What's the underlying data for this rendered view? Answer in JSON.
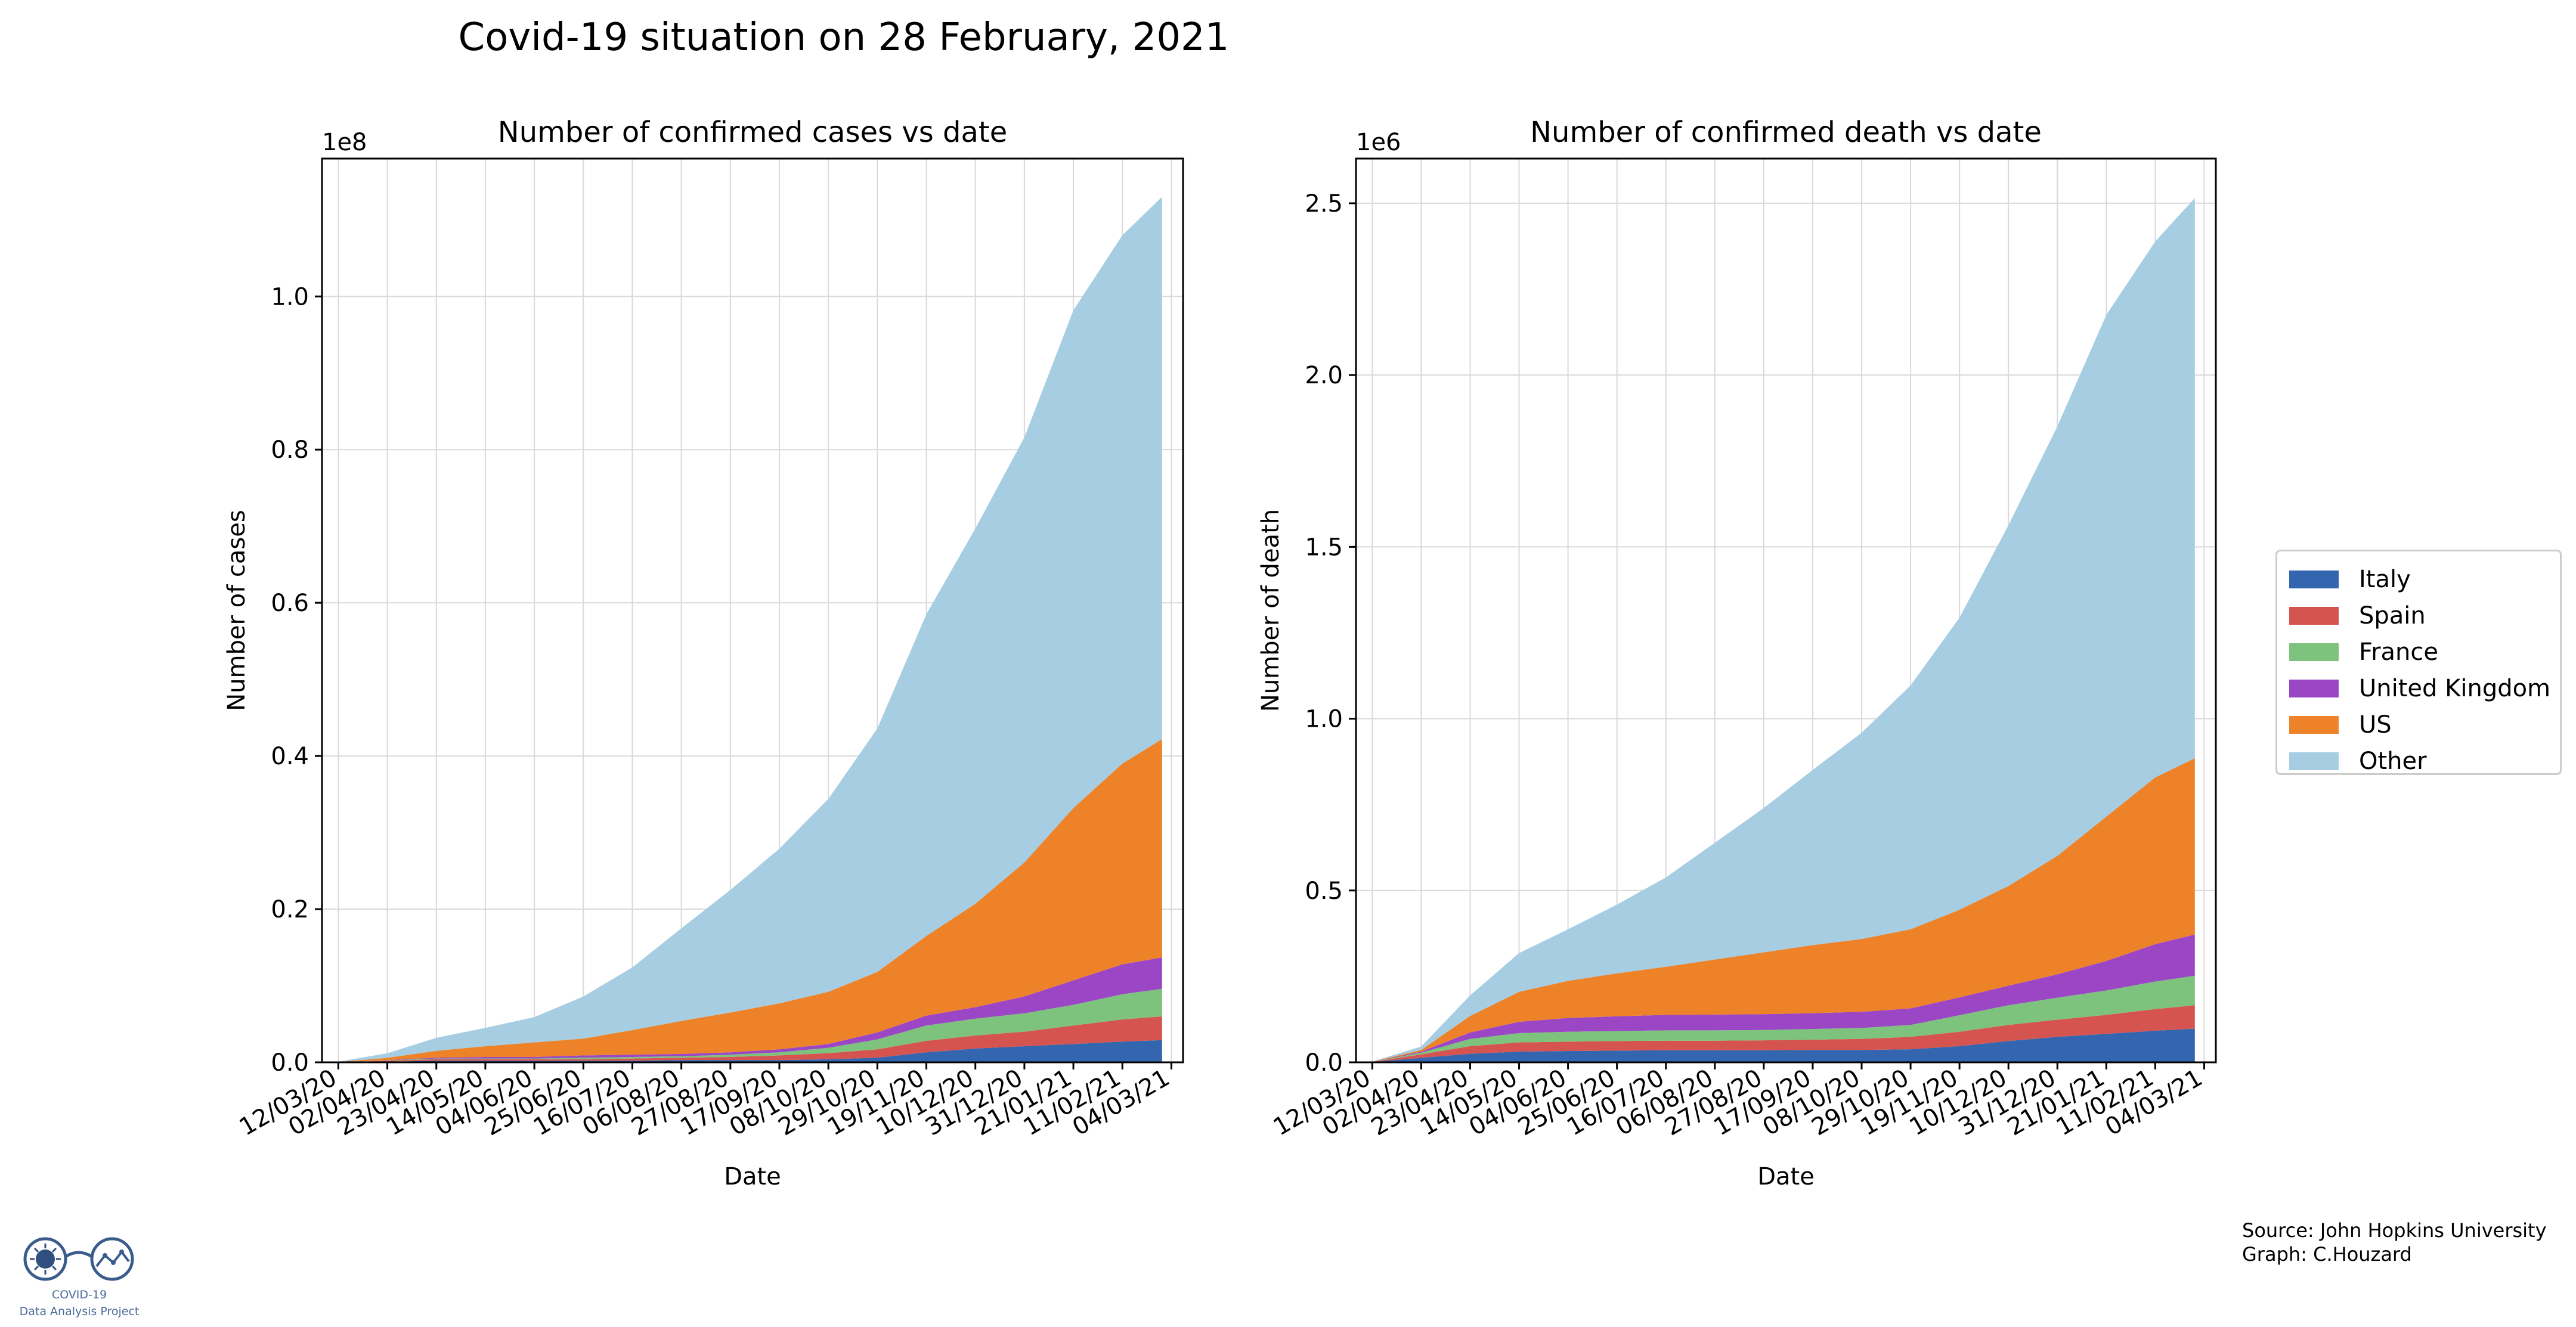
{
  "figure_title": "Covid-19 situation on 28 February, 2021",
  "colors": {
    "Italy": "#3466b0",
    "Spain": "#d5544f",
    "France": "#7dc37d",
    "United Kingdom": "#9b46c5",
    "US": "#ee8228",
    "Other": "#a6cde2",
    "grid": "#d9d9d9"
  },
  "legend": [
    "Italy",
    "Spain",
    "France",
    "United Kingdom",
    "US",
    "Other"
  ],
  "source": {
    "line1": "Source: John Hopkins University",
    "line2": "Graph: C.Houzard"
  },
  "logo": {
    "line1": "COVID-19",
    "line2": "Data Analysis Project"
  },
  "chart_data": [
    {
      "type": "area",
      "stacked": true,
      "title": "Number of confirmed cases vs date",
      "xlabel": "Date",
      "ylabel": "Number of cases",
      "offset_label": "1e8",
      "scale": 100000000,
      "ylim": [
        0,
        1.18
      ],
      "xlim": [
        "2020-03-05",
        "2021-03-09"
      ],
      "grid": true,
      "x_ticks": [
        "12/03/20",
        "02/04/20",
        "23/04/20",
        "14/05/20",
        "04/06/20",
        "25/06/20",
        "16/07/20",
        "06/08/20",
        "27/08/20",
        "17/09/20",
        "08/10/20",
        "29/10/20",
        "19/11/20",
        "10/12/20",
        "31/12/20",
        "21/01/21",
        "11/02/21",
        "04/03/21"
      ],
      "y_ticks": [
        "0.0",
        "0.2",
        "0.4",
        "0.6",
        "0.8",
        "1.0"
      ],
      "y_tick_values": [
        0,
        0.2,
        0.4,
        0.6,
        0.8,
        1.0
      ],
      "x": [
        "2020-03-12",
        "2020-04-02",
        "2020-04-23",
        "2020-05-14",
        "2020-06-04",
        "2020-06-25",
        "2020-07-16",
        "2020-08-06",
        "2020-08-27",
        "2020-09-17",
        "2020-10-08",
        "2020-10-29",
        "2020-11-19",
        "2020-12-10",
        "2020-12-31",
        "2021-01-21",
        "2021-02-11",
        "2021-02-28"
      ],
      "series": [
        {
          "name": "Italy",
          "values": [
            0.0001,
            0.001,
            0.002,
            0.002,
            0.002,
            0.002,
            0.002,
            0.003,
            0.003,
            0.003,
            0.004,
            0.006,
            0.013,
            0.018,
            0.021,
            0.024,
            0.027,
            0.029
          ]
        },
        {
          "name": "Spain",
          "values": [
            0.0001,
            0.001,
            0.002,
            0.002,
            0.002,
            0.002,
            0.003,
            0.003,
            0.004,
            0.006,
            0.008,
            0.011,
            0.015,
            0.017,
            0.019,
            0.024,
            0.029,
            0.031
          ]
        },
        {
          "name": "France",
          "values": [
            0.0001,
            0.0005,
            0.001,
            0.001,
            0.001,
            0.002,
            0.002,
            0.002,
            0.003,
            0.004,
            0.007,
            0.013,
            0.02,
            0.022,
            0.024,
            0.027,
            0.033,
            0.036
          ]
        },
        {
          "name": "United Kingdom",
          "values": [
            0.0001,
            0.0003,
            0.001,
            0.002,
            0.002,
            0.003,
            0.003,
            0.003,
            0.003,
            0.004,
            0.005,
            0.009,
            0.013,
            0.015,
            0.022,
            0.032,
            0.039,
            0.041
          ]
        },
        {
          "name": "US",
          "values": [
            0.0002,
            0.003,
            0.009,
            0.014,
            0.019,
            0.022,
            0.032,
            0.043,
            0.052,
            0.06,
            0.068,
            0.079,
            0.104,
            0.135,
            0.175,
            0.225,
            0.262,
            0.285
          ]
        },
        {
          "name": "Other",
          "values": [
            0.0003,
            0.006,
            0.017,
            0.024,
            0.033,
            0.055,
            0.082,
            0.121,
            0.16,
            0.202,
            0.252,
            0.318,
            0.42,
            0.49,
            0.555,
            0.65,
            0.69,
            0.708
          ]
        }
      ]
    },
    {
      "type": "area",
      "stacked": true,
      "title": "Number of confirmed death vs date",
      "xlabel": "Date",
      "ylabel": "Number of death",
      "offset_label": "1e6",
      "scale": 1000000,
      "ylim": [
        0,
        2.63
      ],
      "xlim": [
        "2020-03-05",
        "2021-03-09"
      ],
      "grid": true,
      "x_ticks": [
        "12/03/20",
        "02/04/20",
        "23/04/20",
        "14/05/20",
        "04/06/20",
        "25/06/20",
        "16/07/20",
        "06/08/20",
        "27/08/20",
        "17/09/20",
        "08/10/20",
        "29/10/20",
        "19/11/20",
        "10/12/20",
        "31/12/20",
        "21/01/21",
        "11/02/21",
        "04/03/21"
      ],
      "y_ticks": [
        "0.0",
        "0.5",
        "1.0",
        "1.5",
        "2.0",
        "2.5"
      ],
      "y_tick_values": [
        0,
        0.5,
        1.0,
        1.5,
        2.0,
        2.5
      ],
      "x": [
        "2020-03-12",
        "2020-04-02",
        "2020-04-23",
        "2020-05-14",
        "2020-06-04",
        "2020-06-25",
        "2020-07-16",
        "2020-08-06",
        "2020-08-27",
        "2020-09-17",
        "2020-10-08",
        "2020-10-29",
        "2020-11-19",
        "2020-12-10",
        "2020-12-31",
        "2021-01-21",
        "2021-02-11",
        "2021-02-28"
      ],
      "series": [
        {
          "name": "Italy",
          "values": [
            0.001,
            0.013,
            0.025,
            0.031,
            0.033,
            0.034,
            0.035,
            0.035,
            0.035,
            0.036,
            0.036,
            0.038,
            0.047,
            0.062,
            0.074,
            0.083,
            0.092,
            0.098
          ]
        },
        {
          "name": "Spain",
          "values": [
            0.0005,
            0.01,
            0.022,
            0.027,
            0.027,
            0.028,
            0.028,
            0.028,
            0.029,
            0.03,
            0.032,
            0.036,
            0.042,
            0.047,
            0.05,
            0.055,
            0.063,
            0.068
          ]
        },
        {
          "name": "France",
          "values": [
            0.0002,
            0.005,
            0.021,
            0.027,
            0.029,
            0.029,
            0.03,
            0.03,
            0.03,
            0.031,
            0.032,
            0.035,
            0.048,
            0.057,
            0.064,
            0.071,
            0.08,
            0.086
          ]
        },
        {
          "name": "United Kingdom",
          "values": [
            0.0002,
            0.003,
            0.019,
            0.033,
            0.04,
            0.043,
            0.045,
            0.046,
            0.046,
            0.046,
            0.047,
            0.048,
            0.052,
            0.057,
            0.068,
            0.086,
            0.109,
            0.12
          ]
        },
        {
          "name": "US",
          "values": [
            0.0001,
            0.005,
            0.048,
            0.087,
            0.108,
            0.125,
            0.14,
            0.16,
            0.18,
            0.198,
            0.212,
            0.23,
            0.255,
            0.29,
            0.345,
            0.42,
            0.485,
            0.513
          ]
        },
        {
          "name": "Other",
          "values": [
            0.0002,
            0.01,
            0.06,
            0.113,
            0.15,
            0.2,
            0.26,
            0.34,
            0.42,
            0.51,
            0.6,
            0.71,
            0.85,
            1.05,
            1.25,
            1.46,
            1.56,
            1.63
          ]
        }
      ]
    }
  ]
}
